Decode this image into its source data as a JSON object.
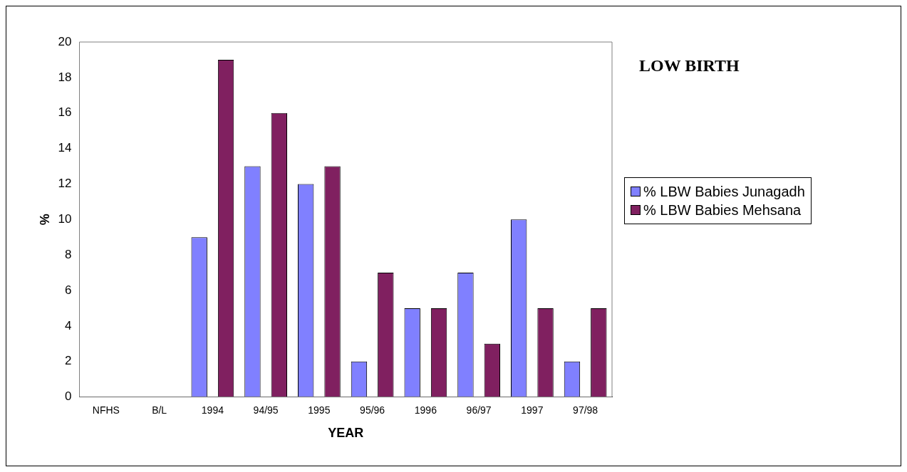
{
  "chart_data": {
    "type": "bar",
    "title": "LOW BIRTH",
    "xlabel": "YEAR",
    "ylabel": "%",
    "categories": [
      "NFHS",
      "B/L",
      "1994",
      "94/95",
      "1995",
      "95/96",
      "1996",
      "96/97",
      "1997",
      "97/98"
    ],
    "series": [
      {
        "name": "% LBW Babies Junagadh",
        "color": "#8080ff",
        "values": [
          null,
          null,
          9,
          13,
          12,
          2,
          5,
          7,
          10,
          2
        ]
      },
      {
        "name": "% LBW Babies Mehsana",
        "color": "#802060",
        "values": [
          null,
          null,
          19,
          16,
          13,
          7,
          5,
          3,
          5,
          5
        ]
      }
    ],
    "ylim": [
      0,
      20
    ],
    "yticks": [
      0,
      2,
      4,
      6,
      8,
      10,
      12,
      14,
      16,
      18,
      20
    ],
    "grid": false,
    "legend": "right"
  }
}
